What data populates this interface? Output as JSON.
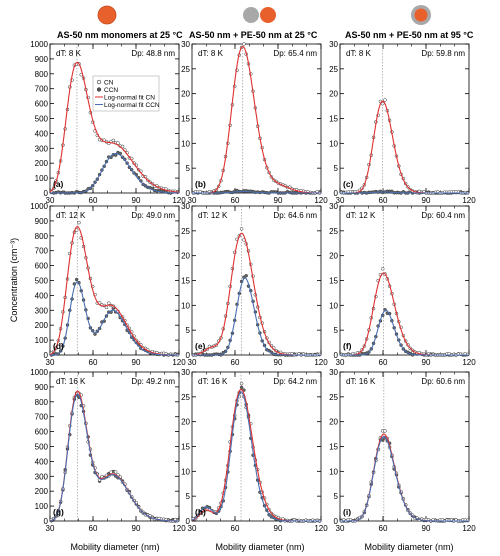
{
  "colors": {
    "cn_fit": "#e03030",
    "ccn_fit": "#4a6fb0",
    "am_particle": "#e8602c",
    "ps_particle": "#a0a0a0",
    "marker_edge": "#333333"
  },
  "column_titles": [
    "AS-50 nm monomers at 25 °C",
    "AS-50 nm + PE-50 nm at 25 °C",
    "AS-50 nm + PE-50 nm at 95 °C"
  ],
  "column_icons": [
    "single-orange-particle",
    "grey-and-orange-particle-pair",
    "orange-particle-with-grey-coating"
  ],
  "y_axis_label": "Concentration (cm⁻³)",
  "x_axis_label": "Mobility diameter (nm)",
  "legend": {
    "cn_label": "CN",
    "ccn_label": "CCN",
    "cn_fit_label": "Log-normal fit CN",
    "ccn_fit_label": "Log-normal fit CCN"
  },
  "chart_data": [
    {
      "id": "a",
      "type": "line",
      "panel_label": "(a)",
      "dT": "dT: 8 K",
      "dp_text": "Dp: 48.8 nm",
      "dp": 48.8,
      "xlim": [
        30,
        120
      ],
      "ylim": [
        0,
        1000
      ],
      "yticks": [
        0,
        100,
        200,
        300,
        400,
        500,
        600,
        700,
        800,
        900,
        1000
      ],
      "xticks": [
        30,
        60,
        90,
        120
      ],
      "series": [
        {
          "name": "CN",
          "modes": [
            [
              48.8,
              870,
              0.16
            ],
            [
              76,
              310,
              0.16
            ]
          ]
        },
        {
          "name": "CCN",
          "modes": [
            [
              76,
              265,
              0.13
            ]
          ]
        }
      ]
    },
    {
      "id": "b",
      "type": "line",
      "panel_label": "(b)",
      "dT": "dT: 8 K",
      "dp_text": "Dp: 65.4 nm",
      "dp": 65.4,
      "xlim": [
        30,
        120
      ],
      "ylim": [
        0,
        30
      ],
      "yticks": [
        0,
        5,
        10,
        15,
        20,
        25,
        30
      ],
      "xticks": [
        30,
        60,
        90,
        120
      ],
      "series": [
        {
          "name": "CN",
          "modes": [
            [
              65.4,
              29.5,
              0.12
            ],
            [
              92,
              1.2,
              0.08
            ]
          ]
        },
        {
          "name": "CCN",
          "modes": [
            [
              65.4,
              0.3,
              0.1
            ]
          ]
        }
      ]
    },
    {
      "id": "c",
      "type": "line",
      "panel_label": "(c)",
      "dT": "dT: 8 K",
      "dp_text": "Dp: 59.8 nm",
      "dp": 59.8,
      "xlim": [
        30,
        120
      ],
      "ylim": [
        0,
        30
      ],
      "yticks": [
        0,
        5,
        10,
        15,
        20,
        25,
        30
      ],
      "xticks": [
        30,
        60,
        90,
        120
      ],
      "series": [
        {
          "name": "CN",
          "modes": [
            [
              59.8,
              18.5,
              0.11
            ]
          ]
        },
        {
          "name": "CCN",
          "modes": [
            [
              59.8,
              0.2,
              0.1
            ]
          ]
        }
      ]
    },
    {
      "id": "d",
      "type": "line",
      "panel_label": "(d)",
      "dT": "dT: 12 K",
      "dp_text": "Dp: 49.0 nm",
      "dp": 49.0,
      "xlim": [
        30,
        120
      ],
      "ylim": [
        0,
        1000
      ],
      "yticks": [
        0,
        100,
        200,
        300,
        400,
        500,
        600,
        700,
        800,
        900,
        1000
      ],
      "xticks": [
        30,
        60,
        90,
        120
      ],
      "series": [
        {
          "name": "CN",
          "modes": [
            [
              49,
              860,
              0.15
            ],
            [
              74,
              310,
              0.13
            ]
          ]
        },
        {
          "name": "CCN",
          "modes": [
            [
              49,
              490,
              0.11
            ],
            [
              74,
              300,
              0.12
            ]
          ]
        }
      ]
    },
    {
      "id": "e",
      "type": "line",
      "panel_label": "(e)",
      "dT": "dT: 12 K",
      "dp_text": "Dp: 64.6 nm",
      "dp": 64.6,
      "xlim": [
        30,
        120
      ],
      "ylim": [
        0,
        30
      ],
      "yticks": [
        0,
        5,
        10,
        15,
        20,
        25,
        30
      ],
      "xticks": [
        30,
        60,
        90,
        120
      ],
      "series": [
        {
          "name": "CN",
          "modes": [
            [
              64.6,
              24.5,
              0.12
            ],
            [
              44,
              1.5,
              0.12
            ]
          ]
        },
        {
          "name": "CCN",
          "modes": [
            [
              67,
              15.5,
              0.09
            ]
          ]
        }
      ]
    },
    {
      "id": "f",
      "type": "line",
      "panel_label": "(f)",
      "dT": "dT: 12 K",
      "dp_text": "Dp: 60.4 nm",
      "dp": 60.4,
      "xlim": [
        30,
        120
      ],
      "ylim": [
        0,
        30
      ],
      "yticks": [
        0,
        5,
        10,
        15,
        20,
        25,
        30
      ],
      "xticks": [
        30,
        60,
        90,
        120
      ],
      "series": [
        {
          "name": "CN",
          "modes": [
            [
              60.4,
              16.5,
              0.12
            ]
          ]
        },
        {
          "name": "CCN",
          "modes": [
            [
              62,
              9,
              0.09
            ]
          ]
        }
      ]
    },
    {
      "id": "g",
      "type": "line",
      "panel_label": "(g)",
      "dT": "dT: 16 K",
      "dp_text": "Dp: 49.2 nm",
      "dp": 49.2,
      "xlim": [
        30,
        120
      ],
      "ylim": [
        0,
        1000
      ],
      "yticks": [
        0,
        100,
        200,
        300,
        400,
        500,
        600,
        700,
        800,
        900,
        1000
      ],
      "xticks": [
        30,
        60,
        90,
        120
      ],
      "series": [
        {
          "name": "CN",
          "modes": [
            [
              49.2,
              870,
              0.14
            ],
            [
              75,
              305,
              0.13
            ]
          ]
        },
        {
          "name": "CCN",
          "modes": [
            [
              49.2,
              850,
              0.14
            ],
            [
              75,
              300,
              0.13
            ]
          ]
        }
      ]
    },
    {
      "id": "h",
      "type": "line",
      "panel_label": "(h)",
      "dT": "dT: 16 K",
      "dp_text": "Dp: 64.2 nm",
      "dp": 64.2,
      "xlim": [
        30,
        120
      ],
      "ylim": [
        0,
        30
      ],
      "yticks": [
        0,
        5,
        10,
        15,
        20,
        25,
        30
      ],
      "xticks": [
        30,
        60,
        90,
        120
      ],
      "series": [
        {
          "name": "CN",
          "modes": [
            [
              64.2,
              26.5,
              0.12
            ],
            [
              40,
              2.2,
              0.12
            ]
          ]
        },
        {
          "name": "CCN",
          "modes": [
            [
              64.2,
              26,
              0.11
            ],
            [
              40,
              2.8,
              0.12
            ]
          ]
        }
      ]
    },
    {
      "id": "i",
      "type": "line",
      "panel_label": "(i)",
      "dT": "dT: 16 K",
      "dp_text": "Dp: 60.6 nm",
      "dp": 60.6,
      "xlim": [
        30,
        120
      ],
      "ylim": [
        0,
        30
      ],
      "yticks": [
        0,
        5,
        10,
        15,
        20,
        25,
        30
      ],
      "xticks": [
        30,
        60,
        90,
        120
      ],
      "series": [
        {
          "name": "CN",
          "modes": [
            [
              60.6,
              17.5,
              0.12
            ]
          ]
        },
        {
          "name": "CCN",
          "modes": [
            [
              60.6,
              17,
              0.12
            ]
          ]
        }
      ]
    }
  ]
}
